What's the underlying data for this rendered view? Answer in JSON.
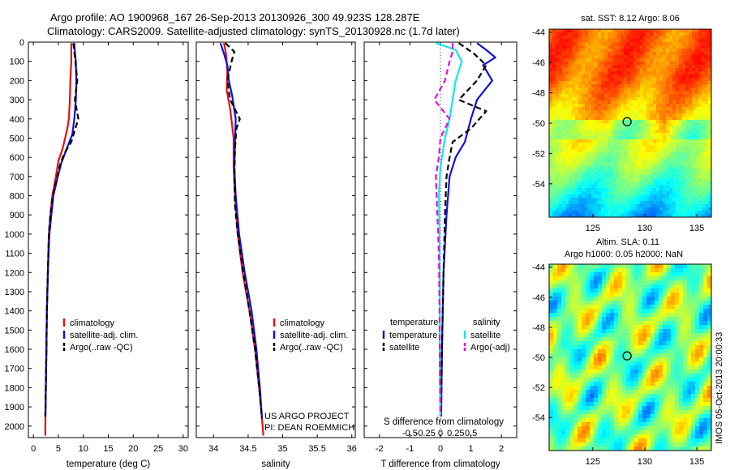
{
  "title": {
    "line1": "Argo profile: AO 1900968_167 26-Sep-2013 20130926_300 49.923S 128.287E",
    "line2": "Climatology: CARS2009. Satellite-adjusted climatology: synTS_20130928.nc (1.7d later)"
  },
  "colors": {
    "climatology": "#e81010",
    "satellite": "#1010e0",
    "argo": "#000000",
    "s_satellite": "#10e8e8",
    "s_argo": "#e010e0"
  },
  "chart_data": [
    {
      "type": "line",
      "id": "temperature",
      "xlabel": "temperature (deg C)",
      "xlim": [
        -1,
        31
      ],
      "ylim": [
        2060,
        0
      ],
      "y_reversed": true,
      "x_ticks": [
        0,
        5,
        10,
        15,
        20,
        25,
        30
      ],
      "y_ticks": [
        0,
        100,
        200,
        300,
        400,
        500,
        600,
        700,
        800,
        900,
        1000,
        1100,
        1200,
        1300,
        1400,
        1500,
        1600,
        1700,
        1800,
        1900,
        2000
      ],
      "legend": [
        "climatology",
        "satellite-adj. clim.",
        "Argo(..raw -QC)"
      ],
      "series": [
        {
          "name": "climatology",
          "style": "solid",
          "color": "#e81010",
          "points": [
            [
              7.6,
              5
            ],
            [
              7.6,
              100
            ],
            [
              7.4,
              200
            ],
            [
              7.3,
              300
            ],
            [
              7.1,
              400
            ],
            [
              6.8,
              450
            ],
            [
              5.9,
              550
            ],
            [
              5.0,
              620
            ],
            [
              4.5,
              700
            ],
            [
              3.8,
              800
            ],
            [
              3.4,
              900
            ],
            [
              3.1,
              1000
            ],
            [
              2.9,
              1200
            ],
            [
              2.7,
              1400
            ],
            [
              2.6,
              1600
            ],
            [
              2.5,
              1800
            ],
            [
              2.4,
              2000
            ],
            [
              2.4,
              2050
            ]
          ]
        },
        {
          "name": "satellite-adj. clim.",
          "style": "solid",
          "color": "#1010e0",
          "points": [
            [
              8.2,
              5
            ],
            [
              8.3,
              50
            ],
            [
              8.5,
              100
            ],
            [
              8.6,
              200
            ],
            [
              8.5,
              300
            ],
            [
              8.2,
              400
            ],
            [
              7.8,
              480
            ],
            [
              6.6,
              560
            ],
            [
              5.6,
              630
            ],
            [
              4.9,
              700
            ],
            [
              4.0,
              800
            ],
            [
              3.6,
              900
            ],
            [
              3.2,
              1000
            ],
            [
              2.9,
              1200
            ],
            [
              2.7,
              1400
            ],
            [
              2.6,
              1600
            ],
            [
              2.5,
              1800
            ],
            [
              2.4,
              1950
            ]
          ]
        },
        {
          "name": "Argo(..raw -QC)",
          "style": "dashed",
          "color": "#000000",
          "points": [
            [
              8.0,
              5
            ],
            [
              8.4,
              100
            ],
            [
              8.8,
              200
            ],
            [
              8.3,
              300
            ],
            [
              9.0,
              400
            ],
            [
              8.4,
              450
            ],
            [
              7.6,
              520
            ],
            [
              6.2,
              580
            ],
            [
              5.3,
              640
            ],
            [
              4.6,
              720
            ],
            [
              3.9,
              800
            ],
            [
              3.4,
              900
            ],
            [
              3.1,
              1000
            ],
            [
              2.9,
              1200
            ],
            [
              2.7,
              1400
            ],
            [
              2.6,
              1600
            ],
            [
              2.5,
              1800
            ],
            [
              2.4,
              1950
            ]
          ]
        }
      ]
    },
    {
      "type": "line",
      "id": "salinity",
      "xlabel": "salinity",
      "xlim": [
        33.75,
        36.05
      ],
      "ylim": [
        2060,
        0
      ],
      "y_reversed": true,
      "x_ticks": [
        34,
        34.5,
        35,
        35.5,
        36
      ],
      "y_ticks": [],
      "legend": [
        "climatology",
        "satellite-adj. clim.",
        "Argo(..raw -QC)"
      ],
      "annotation": [
        "US ARGO PROJECT",
        "PI: DEAN ROEMMICH"
      ],
      "series": [
        {
          "name": "climatology",
          "style": "solid",
          "color": "#e81010",
          "points": [
            [
              34.15,
              5
            ],
            [
              34.18,
              60
            ],
            [
              34.2,
              150
            ],
            [
              34.19,
              250
            ],
            [
              34.24,
              350
            ],
            [
              34.29,
              500
            ],
            [
              34.29,
              650
            ],
            [
              34.31,
              800
            ],
            [
              34.35,
              1000
            ],
            [
              34.42,
              1200
            ],
            [
              34.52,
              1400
            ],
            [
              34.6,
              1600
            ],
            [
              34.66,
              1800
            ],
            [
              34.71,
              2000
            ],
            [
              34.72,
              2050
            ]
          ]
        },
        {
          "name": "satellite-adj. clim.",
          "style": "solid",
          "color": "#1010e0",
          "points": [
            [
              34.1,
              5
            ],
            [
              34.15,
              60
            ],
            [
              34.2,
              120
            ],
            [
              34.22,
              200
            ],
            [
              34.27,
              280
            ],
            [
              34.32,
              400
            ],
            [
              34.31,
              520
            ],
            [
              34.3,
              650
            ],
            [
              34.32,
              800
            ],
            [
              34.37,
              1000
            ],
            [
              34.45,
              1200
            ],
            [
              34.55,
              1400
            ],
            [
              34.62,
              1600
            ],
            [
              34.67,
              1800
            ],
            [
              34.7,
              1960
            ]
          ]
        },
        {
          "name": "Argo(..raw -QC)",
          "style": "dashed",
          "color": "#000000",
          "points": [
            [
              34.17,
              5
            ],
            [
              34.3,
              50
            ],
            [
              34.26,
              100
            ],
            [
              34.2,
              200
            ],
            [
              34.24,
              300
            ],
            [
              34.38,
              400
            ],
            [
              34.33,
              450
            ],
            [
              34.31,
              560
            ],
            [
              34.3,
              700
            ],
            [
              34.31,
              850
            ],
            [
              34.35,
              1000
            ],
            [
              34.43,
              1200
            ],
            [
              34.52,
              1400
            ],
            [
              34.6,
              1600
            ],
            [
              34.66,
              1800
            ],
            [
              34.7,
              1960
            ]
          ]
        }
      ]
    },
    {
      "type": "line",
      "id": "difference",
      "xlabel": "T difference from climatology",
      "xlabel2": "S difference from climatology",
      "xlim": [
        -2.5,
        2.5
      ],
      "ylim": [
        2060,
        0
      ],
      "y_reversed": true,
      "x_ticks": [
        -2,
        -1,
        0,
        1,
        2
      ],
      "x_ticks_top": [
        "-0.5",
        "-0.25",
        "0",
        "0.25",
        "0.5"
      ],
      "y_ticks": [],
      "legend": [
        "temperature",
        "satellite",
        "Argo(-adj)",
        "salinity",
        "satellite",
        "Argo(-adj)"
      ],
      "series": [
        {
          "name": "T satellite",
          "style": "solid",
          "color": "#1010e0",
          "points": [
            [
              1.2,
              5
            ],
            [
              1.5,
              40
            ],
            [
              1.8,
              80
            ],
            [
              1.4,
              120
            ],
            [
              1.7,
              200
            ],
            [
              1.2,
              300
            ],
            [
              1.0,
              400
            ],
            [
              0.8,
              520
            ],
            [
              0.5,
              600
            ],
            [
              0.3,
              700
            ],
            [
              0.2,
              900
            ],
            [
              0.1,
              1200
            ],
            [
              0.05,
              1600
            ],
            [
              0.02,
              1950
            ]
          ]
        },
        {
          "name": "T Argo(-adj)",
          "style": "dashed",
          "color": "#000000",
          "points": [
            [
              0.6,
              5
            ],
            [
              1.1,
              60
            ],
            [
              1.5,
              120
            ],
            [
              1.2,
              200
            ],
            [
              0.6,
              300
            ],
            [
              1.5,
              360
            ],
            [
              1.0,
              450
            ],
            [
              0.4,
              520
            ],
            [
              0.3,
              600
            ],
            [
              0.2,
              700
            ],
            [
              0.15,
              900
            ],
            [
              0.1,
              1200
            ],
            [
              0.05,
              1600
            ],
            [
              0.02,
              1950
            ]
          ]
        },
        {
          "name": "S satellite",
          "style": "solid",
          "color": "#10e8e8",
          "points": [
            [
              -0.15,
              5
            ],
            [
              0.5,
              40
            ],
            [
              0.7,
              100
            ],
            [
              0.5,
              200
            ],
            [
              0.4,
              300
            ],
            [
              0.3,
              400
            ],
            [
              0.15,
              500
            ],
            [
              0.0,
              650
            ],
            [
              -0.05,
              800
            ],
            [
              -0.03,
              1000
            ],
            [
              -0.02,
              1300
            ],
            [
              -0.02,
              1700
            ],
            [
              0.0,
              1950
            ]
          ]
        },
        {
          "name": "S Argo(-adj)",
          "style": "dashed",
          "color": "#e010e0",
          "points": [
            [
              0.4,
              5
            ],
            [
              0.4,
              50
            ],
            [
              0.3,
              100
            ],
            [
              0.15,
              200
            ],
            [
              -0.2,
              300
            ],
            [
              0.3,
              400
            ],
            [
              0.0,
              500
            ],
            [
              -0.05,
              600
            ],
            [
              -0.15,
              700
            ],
            [
              -0.1,
              900
            ],
            [
              -0.05,
              1100
            ],
            [
              -0.03,
              1400
            ],
            [
              -0.02,
              1700
            ],
            [
              0.0,
              1950
            ]
          ]
        }
      ]
    },
    {
      "type": "heatmap",
      "id": "sst",
      "title": "sat. SST: 8.12 Argo: 8.06",
      "x_ticks": [
        125,
        130,
        135
      ],
      "y_ticks": [
        -44,
        -46,
        -48,
        -50,
        -52,
        -54
      ],
      "marker": [
        128.3,
        -49.9
      ],
      "palette": "jet"
    },
    {
      "type": "heatmap",
      "id": "sla",
      "title": "Altim. SLA: 0.11",
      "title2": "Argo h1000: 0.05 h2000: NaN",
      "x_ticks": [
        125,
        130,
        135
      ],
      "y_ticks": [
        -44,
        -46,
        -48,
        -50,
        -52,
        -54
      ],
      "marker": [
        128.3,
        -49.9
      ],
      "palette": "jet"
    }
  ],
  "credit": "IMOS 05-Oct-2013 20:00:33"
}
